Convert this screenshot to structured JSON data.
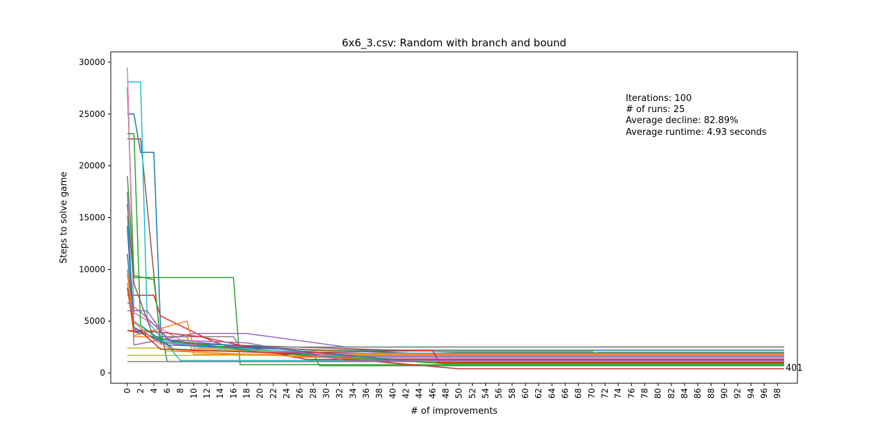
{
  "chart_data": {
    "type": "line",
    "title": "6x6_3.csv: Random with branch and bound",
    "xlabel": "# of improvements",
    "ylabel": "Steps to solve game",
    "xlim": [
      -2.5,
      101
    ],
    "ylim": [
      -1000,
      31000
    ],
    "xticks": [
      0,
      2,
      4,
      6,
      8,
      10,
      12,
      14,
      16,
      18,
      20,
      22,
      24,
      26,
      28,
      30,
      32,
      34,
      36,
      38,
      40,
      42,
      44,
      46,
      48,
      50,
      52,
      54,
      56,
      58,
      60,
      62,
      64,
      66,
      68,
      70,
      72,
      74,
      76,
      78,
      80,
      82,
      84,
      86,
      88,
      90,
      92,
      94,
      96,
      98
    ],
    "yticks": [
      0,
      5000,
      10000,
      15000,
      20000,
      25000,
      30000
    ],
    "grid": false,
    "legend": "none",
    "info_text": [
      "Iterations: 100",
      "# of runs: 25",
      "Average decline: 82.89%",
      "Average runtime: 4.93 seconds"
    ],
    "end_annotation": {
      "x": 99,
      "y": 401,
      "text": "401"
    },
    "series": [
      {
        "color": "#1f77b4",
        "points": [
          [
            0,
            25000
          ],
          [
            1,
            25000
          ],
          [
            2,
            21300
          ],
          [
            4,
            21300
          ],
          [
            5,
            4500
          ],
          [
            6,
            1100
          ],
          [
            99,
            1100
          ]
        ]
      },
      {
        "color": "#ff7f0e",
        "points": [
          [
            0,
            10000
          ],
          [
            1,
            3500
          ],
          [
            9,
            3500
          ],
          [
            10,
            1800
          ],
          [
            99,
            1800
          ]
        ]
      },
      {
        "color": "#2ca02c",
        "points": [
          [
            0,
            27600
          ],
          [
            1,
            9200
          ],
          [
            16,
            9200
          ],
          [
            17,
            800
          ],
          [
            99,
            800
          ]
        ]
      },
      {
        "color": "#d62728",
        "points": [
          [
            0,
            7500
          ],
          [
            4,
            7500
          ],
          [
            5,
            5500
          ],
          [
            13,
            3000
          ],
          [
            17,
            2200
          ],
          [
            50,
            400
          ],
          [
            99,
            400
          ]
        ]
      },
      {
        "color": "#9467bd",
        "points": [
          [
            0,
            17500
          ],
          [
            1,
            2700
          ],
          [
            10,
            3800
          ],
          [
            18,
            3800
          ],
          [
            33,
            2500
          ],
          [
            99,
            2500
          ]
        ]
      },
      {
        "color": "#8c564b",
        "points": [
          [
            0,
            22600
          ],
          [
            2,
            22600
          ],
          [
            5,
            2900
          ],
          [
            50,
            2000
          ],
          [
            99,
            2000
          ]
        ]
      },
      {
        "color": "#e377c2",
        "points": [
          [
            0,
            29500
          ],
          [
            1,
            5800
          ],
          [
            8,
            3200
          ],
          [
            30,
            1500
          ],
          [
            99,
            1500
          ]
        ]
      },
      {
        "color": "#7f7f7f",
        "points": [
          [
            0,
            4100
          ],
          [
            4,
            3500
          ],
          [
            16,
            3500
          ],
          [
            17,
            2500
          ],
          [
            99,
            2500
          ]
        ]
      },
      {
        "color": "#bcbd22",
        "points": [
          [
            0,
            1700
          ],
          [
            24,
            1700
          ],
          [
            25,
            1500
          ],
          [
            99,
            1500
          ]
        ]
      },
      {
        "color": "#17becf",
        "points": [
          [
            0,
            28100
          ],
          [
            2,
            28100
          ],
          [
            3,
            5000
          ],
          [
            8,
            1200
          ],
          [
            99,
            1200
          ]
        ]
      },
      {
        "color": "#1f77b4",
        "points": [
          [
            0,
            11500
          ],
          [
            1,
            4000
          ],
          [
            7,
            3000
          ],
          [
            28,
            2200
          ],
          [
            99,
            2200
          ]
        ]
      },
      {
        "color": "#ff7f0e",
        "points": [
          [
            0,
            8700
          ],
          [
            1,
            3600
          ],
          [
            9,
            5000
          ],
          [
            10,
            2400
          ],
          [
            32,
            1700
          ],
          [
            99,
            1700
          ]
        ]
      },
      {
        "color": "#2ca02c",
        "points": [
          [
            0,
            23100
          ],
          [
            1,
            23100
          ],
          [
            2,
            4600
          ],
          [
            7,
            2300
          ],
          [
            28,
            1800
          ],
          [
            29,
            700
          ],
          [
            99,
            700
          ]
        ]
      },
      {
        "color": "#d62728",
        "points": [
          [
            0,
            8200
          ],
          [
            1,
            4200
          ],
          [
            11,
            3500
          ],
          [
            27,
            1300
          ],
          [
            99,
            1300
          ]
        ]
      },
      {
        "color": "#9467bd",
        "points": [
          [
            0,
            6800
          ],
          [
            2,
            5900
          ],
          [
            7,
            2800
          ],
          [
            33,
            1600
          ],
          [
            99,
            1600
          ]
        ]
      },
      {
        "color": "#8c564b",
        "points": [
          [
            0,
            16300
          ],
          [
            1,
            8600
          ],
          [
            4,
            3400
          ],
          [
            12,
            2600
          ],
          [
            43,
            1900
          ],
          [
            99,
            1900
          ]
        ]
      },
      {
        "color": "#e377c2",
        "points": [
          [
            0,
            13800
          ],
          [
            1,
            4300
          ],
          [
            5,
            3000
          ],
          [
            32,
            1400
          ],
          [
            99,
            1400
          ]
        ]
      },
      {
        "color": "#7f7f7f",
        "points": [
          [
            0,
            1100
          ],
          [
            99,
            1100
          ]
        ]
      },
      {
        "color": "#bcbd22",
        "points": [
          [
            0,
            2400
          ],
          [
            5,
            2400
          ],
          [
            6,
            2100
          ],
          [
            70,
            2100
          ],
          [
            71,
            1900
          ],
          [
            99,
            1900
          ]
        ]
      },
      {
        "color": "#17becf",
        "points": [
          [
            0,
            15200
          ],
          [
            1,
            5000
          ],
          [
            5,
            3100
          ],
          [
            11,
            2500
          ],
          [
            30,
            1900
          ],
          [
            99,
            1900
          ]
        ]
      },
      {
        "color": "#1f77b4",
        "points": [
          [
            0,
            14200
          ],
          [
            1,
            4400
          ],
          [
            6,
            2700
          ],
          [
            23,
            2300
          ],
          [
            45,
            1000
          ],
          [
            99,
            1000
          ]
        ]
      },
      {
        "color": "#ff7f0e",
        "points": [
          [
            0,
            9500
          ],
          [
            1,
            4900
          ],
          [
            4,
            3200
          ],
          [
            7,
            2100
          ],
          [
            44,
            1100
          ],
          [
            99,
            1100
          ]
        ]
      },
      {
        "color": "#2ca02c",
        "points": [
          [
            0,
            19000
          ],
          [
            1,
            9400
          ],
          [
            4,
            9000
          ],
          [
            5,
            3300
          ],
          [
            20,
            2000
          ],
          [
            48,
            900
          ],
          [
            99,
            900
          ]
        ]
      },
      {
        "color": "#d62728",
        "points": [
          [
            0,
            4100
          ],
          [
            2,
            4000
          ],
          [
            5,
            2300
          ],
          [
            24,
            1900
          ],
          [
            46,
            2200
          ],
          [
            47,
            1000
          ],
          [
            99,
            1000
          ]
        ]
      },
      {
        "color": "#9467bd",
        "points": [
          [
            0,
            6000
          ],
          [
            3,
            6000
          ],
          [
            6,
            3200
          ],
          [
            18,
            2900
          ],
          [
            33,
            1200
          ],
          [
            99,
            1200
          ]
        ]
      }
    ]
  }
}
